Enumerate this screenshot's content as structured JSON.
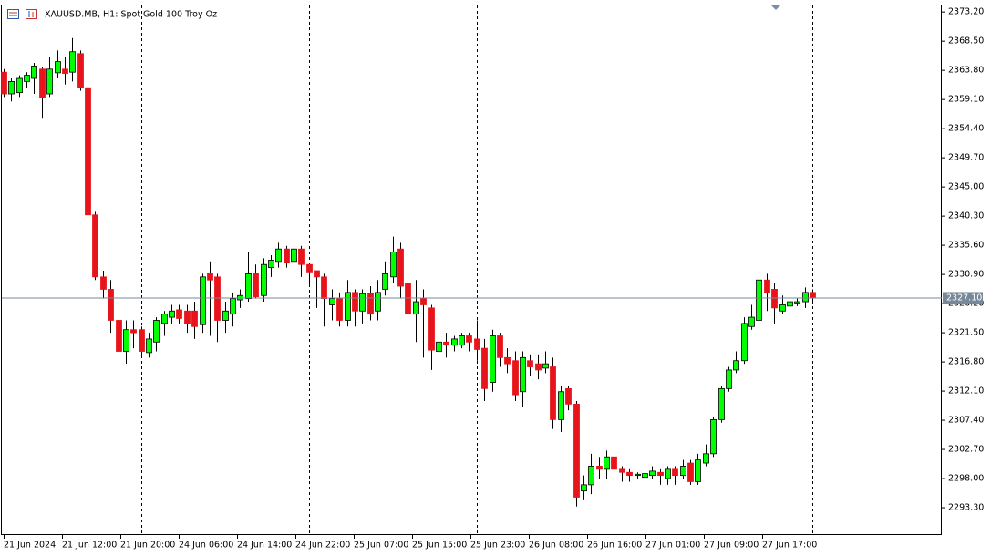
{
  "chart_data": {
    "type": "candlestick",
    "title": "XAUUSD.MB, H1:  Spot Gold 100 Troy Oz",
    "bull_color": "#00ff00",
    "bear_color": "#e8141b",
    "ylim": [
      2288.9,
      2374.4
    ],
    "yticks": [
      {
        "value": 2373.2,
        "label": "2373.20"
      },
      {
        "value": 2368.5,
        "label": "2368.50"
      },
      {
        "value": 2363.8,
        "label": "2363.80"
      },
      {
        "value": 2359.1,
        "label": "2359.10"
      },
      {
        "value": 2354.4,
        "label": "2354.40"
      },
      {
        "value": 2349.7,
        "label": "2349.70"
      },
      {
        "value": 2345,
        "label": "2345.00"
      },
      {
        "value": 2340.3,
        "label": "2340.30"
      },
      {
        "value": 2335.6,
        "label": "2335.60"
      },
      {
        "value": 2330.9,
        "label": "2330.90"
      },
      {
        "value": 2326.2,
        "label": "2326.20"
      },
      {
        "value": 2321.5,
        "label": "2321.50"
      },
      {
        "value": 2316.8,
        "label": "2316.80"
      },
      {
        "value": 2312.1,
        "label": "2312.10"
      },
      {
        "value": 2307.4,
        "label": "2307.40"
      },
      {
        "value": 2302.7,
        "label": "2302.70"
      },
      {
        "value": 2298,
        "label": "2298.00"
      },
      {
        "value": 2293.3,
        "label": "2293.30"
      }
    ],
    "last_price": {
      "value": 2327.1,
      "label": "2327.10"
    },
    "x_labels": [
      "21 Jun 2024",
      "21 Jun 12:00",
      "21 Jun 20:00",
      "24 Jun 06:00",
      "24 Jun 14:00",
      "24 Jun 22:00",
      "25 Jun 07:00",
      "25 Jun 15:00",
      "25 Jun 23:00",
      "26 Jun 08:00",
      "26 Jun 16:00",
      "27 Jun 01:00",
      "27 Jun 09:00",
      "27 Jun 17:00"
    ],
    "open": [
      2363.5,
      2360,
      2360.2,
      2362,
      2362.5,
      2364,
      2360,
      2363.4,
      2364,
      2363.5,
      2366.5,
      2361,
      2340.5,
      2330.5,
      2328.5,
      2323.5,
      2318.5,
      2322,
      2322,
      2318.3,
      2320,
      2323,
      2324,
      2325.2,
      2325,
      2325,
      2322.8,
      2331,
      2330.5,
      2323.5,
      2324.5,
      2326.8,
      2327,
      2331,
      2327.5,
      2332,
      2333,
      2335,
      2333,
      2335,
      2332.5,
      2331.5,
      2330.5,
      2326,
      2327,
      2323.5,
      2328,
      2325,
      2327.8,
      2325,
      2328.5,
      2330.5,
      2335,
      2329.5,
      2324.5,
      2327,
      2325.5,
      2318.5,
      2320,
      2319.5,
      2319.5,
      2321,
      2320.5,
      2319,
      2313.5,
      2321,
      2317.5,
      2317,
      2312,
      2317,
      2316.5,
      2315.8,
      2316,
      2307.5,
      2312.5,
      2310,
      2296,
      2297,
      2300,
      2299.5,
      2301.5,
      2299.5,
      2299,
      2298.5,
      2298.2,
      2298.5,
      2299,
      2298,
      2299.5,
      2298.5,
      2300.5,
      2297.5,
      2300.5,
      2302,
      2307.5,
      2312.5,
      2315.5,
      2317,
      2322.5,
      2323.5,
      2330,
      2328.5,
      2325,
      2325.8,
      2326.3,
      2326.5,
      2328
    ],
    "high": [
      2364,
      2362.5,
      2363,
      2363.5,
      2365,
      2364.3,
      2366,
      2367,
      2366,
      2369,
      2367,
      2361.5,
      2341,
      2331.5,
      2330,
      2324,
      2323.5,
      2323.5,
      2322.5,
      2321.5,
      2324,
      2325,
      2326,
      2326,
      2326,
      2326.5,
      2331,
      2333,
      2331,
      2326.5,
      2328,
      2328.5,
      2334.5,
      2332.5,
      2333.5,
      2334,
      2336,
      2335.5,
      2335.8,
      2335.5,
      2332.8,
      2331.5,
      2331,
      2328.5,
      2328,
      2330,
      2328.5,
      2328.5,
      2329,
      2330,
      2333,
      2337,
      2336,
      2330.5,
      2330,
      2328.5,
      2326,
      2321,
      2321.5,
      2321,
      2321.5,
      2321.5,
      2323.5,
      2320.5,
      2322,
      2321.5,
      2319,
      2318.5,
      2318.5,
      2318,
      2318,
      2318.5,
      2317.5,
      2313,
      2313,
      2310.5,
      2298.5,
      2302,
      2301.5,
      2302.5,
      2302,
      2300,
      2299.5,
      2299,
      2299.5,
      2300,
      2299.5,
      2300,
      2300,
      2301,
      2301,
      2302,
      2303.5,
      2308,
      2313,
      2316,
      2318.5,
      2324,
      2326,
      2331,
      2331,
      2329.5,
      2327.5,
      2327.5,
      2327,
      2328.8,
      2328.5
    ],
    "low": [
      2359.5,
      2358.8,
      2359.5,
      2361,
      2360,
      2356,
      2359.5,
      2362.5,
      2361.5,
      2362,
      2360.5,
      2335.5,
      2330,
      2327,
      2321.5,
      2316.5,
      2316.5,
      2319,
      2317.5,
      2317.5,
      2318.5,
      2321,
      2323,
      2323,
      2321.5,
      2320.5,
      2321.5,
      2321,
      2320,
      2321.5,
      2322.5,
      2325.5,
      2326.5,
      2327,
      2326.5,
      2330.5,
      2332,
      2332,
      2332,
      2330.5,
      2329,
      2325.5,
      2322.5,
      2323.5,
      2322.5,
      2322.5,
      2322.5,
      2323,
      2323.5,
      2323.5,
      2327.5,
      2329.5,
      2327,
      2320.5,
      2320,
      2317.5,
      2315.5,
      2316.5,
      2317.5,
      2318.5,
      2319,
      2318.5,
      2317,
      2310.5,
      2312,
      2316,
      2315,
      2310.5,
      2309.5,
      2314.5,
      2314,
      2315,
      2306,
      2305.5,
      2309,
      2293.5,
      2294.5,
      2295.5,
      2298,
      2298,
      2298,
      2297.5,
      2297.5,
      2298,
      2297.5,
      2298,
      2297,
      2297,
      2297,
      2298,
      2297,
      2297,
      2300,
      2301.5,
      2307,
      2312,
      2315,
      2316.5,
      2322,
      2323,
      2325,
      2323,
      2324.5,
      2322.5,
      2325.8,
      2325.5,
      2326.5
    ],
    "close": [
      2360,
      2362,
      2362.5,
      2363,
      2364.5,
      2359.4,
      2364,
      2365.2,
      2363.3,
      2366.8,
      2361,
      2340.5,
      2330.5,
      2328.5,
      2323.5,
      2318.5,
      2322,
      2321.5,
      2318.5,
      2320.5,
      2323.5,
      2324.5,
      2325,
      2323.8,
      2323,
      2322.5,
      2330.5,
      2330,
      2323.5,
      2325,
      2327,
      2327.5,
      2331,
      2327.3,
      2332.5,
      2333.2,
      2335,
      2332.8,
      2335,
      2332.5,
      2331.3,
      2330.5,
      2327,
      2327,
      2323.5,
      2328,
      2325,
      2327.8,
      2324.5,
      2328,
      2331,
      2334.5,
      2329,
      2324.5,
      2326.5,
      2326,
      2318.7,
      2320,
      2319.5,
      2320.5,
      2321,
      2320,
      2318.8,
      2312.5,
      2321,
      2317.5,
      2316.5,
      2311.5,
      2317.5,
      2316,
      2315.5,
      2316.5,
      2307.5,
      2312,
      2310,
      2295,
      2297,
      2300,
      2299.5,
      2301.5,
      2299.5,
      2299,
      2298.5,
      2298.7,
      2298.8,
      2299.2,
      2298.5,
      2299.5,
      2298.5,
      2300,
      2297.5,
      2301,
      2302,
      2307.5,
      2312.5,
      2315.5,
      2317,
      2323,
      2324,
      2330,
      2328,
      2325.5,
      2326,
      2326.5,
      2326.5,
      2328,
      2327.1
    ]
  }
}
